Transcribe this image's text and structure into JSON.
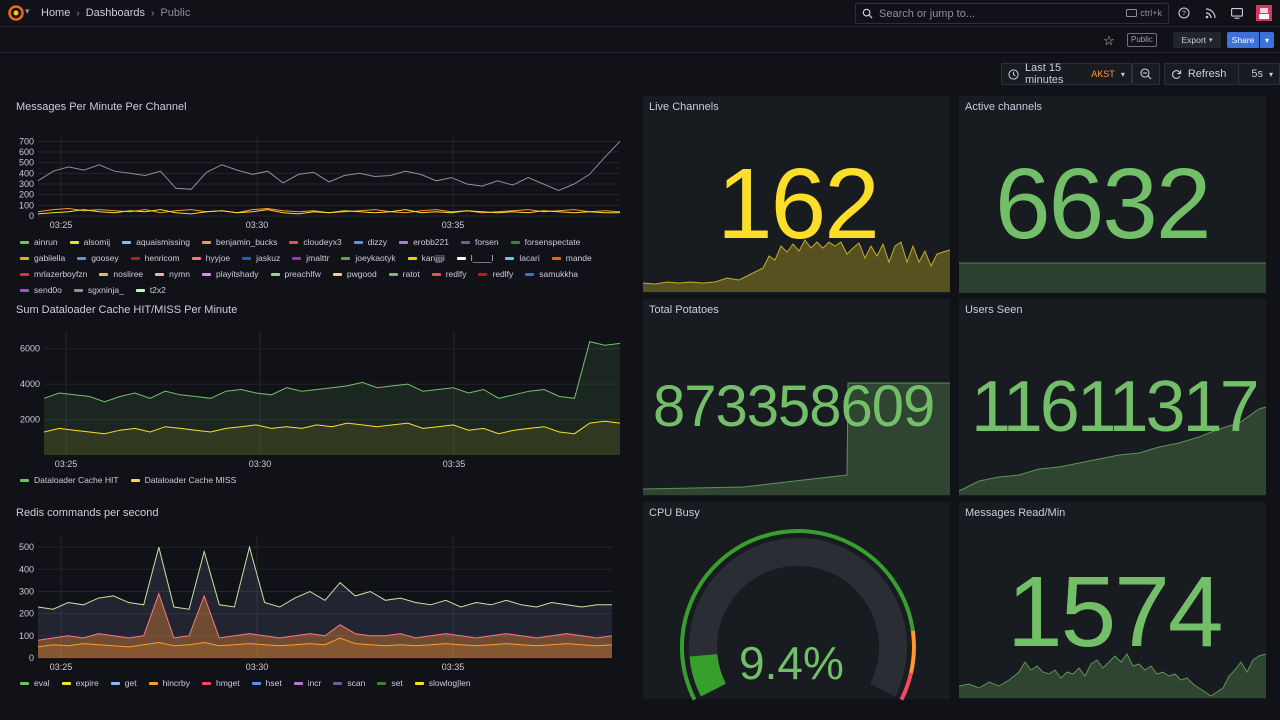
{
  "breadcrumbs": {
    "home": "Home",
    "dashboards": "Dashboards",
    "current": "Public"
  },
  "search": {
    "placeholder": "Search or jump to...",
    "shortcut": "ctrl+k"
  },
  "subbar": {
    "public_tag": "Public",
    "export_label": "Export",
    "share_label": "Share"
  },
  "time_controls": {
    "range": "Last 15 minutes",
    "timezone": "AKST",
    "refresh": "Refresh",
    "interval": "5s"
  },
  "colors": {
    "bg": "#111217",
    "panel": "#181b1f",
    "green": "#73bf69",
    "yellow": "#fade2a",
    "blue": "#3d71d9",
    "orange": "#ff9830"
  },
  "panels": {
    "messages_per_minute": {
      "title": "Messages Per Minute Per Channel",
      "legend": [
        {
          "name": "ainrun",
          "color": "#73bf69"
        },
        {
          "name": "alsomij",
          "color": "#fade2a"
        },
        {
          "name": "aquaismissing",
          "color": "#8ab8ff"
        },
        {
          "name": "benjamin_bucks",
          "color": "#ff9830"
        },
        {
          "name": "cloudeyx3",
          "color": "#f2495c"
        },
        {
          "name": "dizzy",
          "color": "#5794f2"
        },
        {
          "name": "erobb221",
          "color": "#b877d9"
        },
        {
          "name": "forsen",
          "color": "#705da0"
        },
        {
          "name": "forsenspectate",
          "color": "#37872d"
        },
        {
          "name": "gabilella",
          "color": "#e0b400"
        },
        {
          "name": "goosey",
          "color": "#5794f2"
        },
        {
          "name": "henricom",
          "color": "#c4162a"
        },
        {
          "name": "hyyjoe",
          "color": "#ff7383"
        },
        {
          "name": "jaskuz",
          "color": "#1f60c4"
        },
        {
          "name": "jmalttr",
          "color": "#8f3bb8"
        },
        {
          "name": "joeykaotyk",
          "color": "#56a64b"
        },
        {
          "name": "kanjjjji",
          "color": "#f2cc0c"
        },
        {
          "name": "l____l",
          "color": "#fff"
        },
        {
          "name": "lacari",
          "color": "#5ac8fa"
        },
        {
          "name": "mande",
          "color": "#fa6400"
        },
        {
          "name": "mrlazerboyfzn",
          "color": "#e02f44"
        },
        {
          "name": "nosliree",
          "color": "#ffb357"
        },
        {
          "name": "nymn",
          "color": "#ffa6b0"
        },
        {
          "name": "playitshady",
          "color": "#ca95e5"
        },
        {
          "name": "preachlfw",
          "color": "#96d98d"
        },
        {
          "name": "pwgood",
          "color": "#ffcb7d"
        },
        {
          "name": "ratot",
          "color": "#73bf69"
        },
        {
          "name": "redlfy",
          "color": "#f2495c"
        },
        {
          "name": "redlfy",
          "color": "#c4162a"
        },
        {
          "name": "samukkha",
          "color": "#3274d9"
        },
        {
          "name": "send0o",
          "color": "#a352cc"
        },
        {
          "name": "sgxninja_",
          "color": "#8e8e9e"
        },
        {
          "name": "t2x2",
          "color": "#c8f2c2"
        }
      ]
    },
    "live_channels": {
      "title": "Live Channels",
      "value": "162"
    },
    "active_channels": {
      "title": "Active channels",
      "value": "6632"
    },
    "cache_hit_miss": {
      "title": "Sum Dataloader Cache HIT/MISS Per Minute",
      "legend": [
        {
          "name": "Dataloader Cache HIT",
          "color": "#73bf69"
        },
        {
          "name": "Dataloader Cache MISS",
          "color": "#fade2a"
        }
      ]
    },
    "total_potatoes": {
      "title": "Total Potatoes",
      "value": "873358609"
    },
    "users_seen": {
      "title": "Users Seen",
      "value": "11611317"
    },
    "redis_commands": {
      "title": "Redis commands per second",
      "legend": [
        {
          "name": "eval",
          "color": "#73bf69"
        },
        {
          "name": "expire",
          "color": "#fade2a"
        },
        {
          "name": "get",
          "color": "#8ab8ff"
        },
        {
          "name": "hincrby",
          "color": "#ff9830"
        },
        {
          "name": "hmget",
          "color": "#f2495c"
        },
        {
          "name": "hset",
          "color": "#5794f2"
        },
        {
          "name": "incr",
          "color": "#b877d9"
        },
        {
          "name": "scan",
          "color": "#705da0"
        },
        {
          "name": "set",
          "color": "#37872d"
        },
        {
          "name": "slowlog|len",
          "color": "#fade2a"
        }
      ]
    },
    "cpu_busy": {
      "title": "CPU Busy",
      "value": "9.4%",
      "percent": 9.4
    },
    "messages_read": {
      "title": "Messages Read/Min",
      "value": "1574"
    }
  },
  "chart_data": [
    {
      "type": "line",
      "title": "Messages Per Minute Per Channel",
      "x_ticks": [
        "03:25",
        "03:30",
        "03:35"
      ],
      "y_ticks": [
        0,
        100,
        200,
        300,
        400,
        500,
        600,
        700
      ],
      "ylim": [
        0,
        750
      ],
      "series": [
        {
          "name": "forsen",
          "values": [
            330,
            420,
            460,
            430,
            480,
            420,
            400,
            380,
            420,
            260,
            250,
            410,
            480,
            430,
            390,
            420,
            310,
            390,
            410,
            320,
            380,
            400,
            370,
            380,
            420,
            390,
            330,
            360,
            300,
            280,
            330,
            290,
            360,
            300,
            240,
            300,
            390,
            550,
            700
          ]
        },
        {
          "name": "benjamin_bucks",
          "values": [
            40,
            60,
            70,
            50,
            60,
            50,
            40,
            60,
            30,
            50,
            60,
            40,
            50,
            30,
            60,
            70,
            50,
            40,
            50,
            30,
            40,
            50,
            60,
            40,
            30,
            50,
            60,
            40,
            50,
            30,
            40,
            50,
            60,
            40,
            50,
            60,
            40,
            50,
            40
          ]
        },
        {
          "name": "alsomij",
          "values": [
            20,
            30,
            40,
            60,
            40,
            30,
            50,
            40,
            60,
            30,
            20,
            40,
            50,
            30,
            40,
            60,
            30,
            20,
            40,
            30,
            50,
            40,
            30,
            40,
            60,
            30,
            40,
            30,
            50,
            40,
            30,
            40,
            30,
            50,
            40,
            30,
            40,
            30,
            30
          ]
        }
      ]
    },
    {
      "type": "area",
      "title": "Sum Dataloader Cache HIT/MISS Per Minute",
      "x_ticks": [
        "03:25",
        "03:30",
        "03:35"
      ],
      "y_ticks": [
        2000,
        4000,
        6000
      ],
      "ylim": [
        0,
        7000
      ],
      "series": [
        {
          "name": "Dataloader Cache HIT",
          "values": [
            3200,
            3500,
            3400,
            3300,
            3000,
            3300,
            3500,
            3200,
            3600,
            3400,
            3300,
            3200,
            3600,
            3700,
            3500,
            3400,
            3800,
            3600,
            3700,
            3800,
            3900,
            4100,
            3800,
            3900,
            4000,
            3600,
            3700,
            3800,
            3500,
            3700,
            3200,
            3400,
            3600,
            3700,
            3300,
            3200,
            6400,
            6200,
            6300
          ]
        },
        {
          "name": "Dataloader Cache MISS",
          "values": [
            1300,
            1500,
            1400,
            1300,
            1200,
            1400,
            1500,
            1300,
            1600,
            1500,
            1400,
            1300,
            1500,
            1600,
            1700,
            1500,
            1600,
            1500,
            1700,
            1600,
            1800,
            1700,
            1600,
            1700,
            1800,
            1500,
            1600,
            1700,
            1400,
            1500,
            1200,
            1400,
            1500,
            1600,
            1300,
            1200,
            1800,
            1900,
            1800
          ]
        }
      ]
    },
    {
      "type": "area",
      "title": "Redis commands per second",
      "x_ticks": [
        "03:25",
        "03:30",
        "03:35"
      ],
      "y_ticks": [
        0,
        100,
        200,
        300,
        400,
        500
      ],
      "ylim": [
        0,
        550
      ],
      "series": [
        {
          "name": "eval",
          "values": [
            230,
            220,
            250,
            240,
            270,
            280,
            250,
            240,
            500,
            230,
            220,
            480,
            240,
            230,
            500,
            250,
            230,
            270,
            300,
            260,
            340,
            280,
            300,
            260,
            270,
            250,
            240,
            260,
            230,
            250,
            240,
            260,
            240,
            230,
            250,
            240,
            230,
            240,
            240
          ]
        },
        {
          "name": "hincrby",
          "values": [
            80,
            90,
            100,
            90,
            110,
            100,
            90,
            100,
            290,
            90,
            100,
            280,
            90,
            100,
            110,
            100,
            90,
            100,
            110,
            100,
            150,
            110,
            100,
            100,
            110,
            90,
            100,
            110,
            100,
            90,
            100,
            110,
            100,
            90,
            100,
            110,
            100,
            90,
            100
          ]
        },
        {
          "name": "set",
          "values": [
            50,
            60,
            55,
            65,
            60,
            55,
            50,
            60,
            70,
            55,
            60,
            70,
            55,
            60,
            65,
            60,
            55,
            60,
            65,
            60,
            90,
            65,
            60,
            55,
            60,
            55,
            60,
            65,
            60,
            55,
            60,
            65,
            60,
            55,
            60,
            65,
            60,
            55,
            60
          ]
        }
      ]
    }
  ]
}
